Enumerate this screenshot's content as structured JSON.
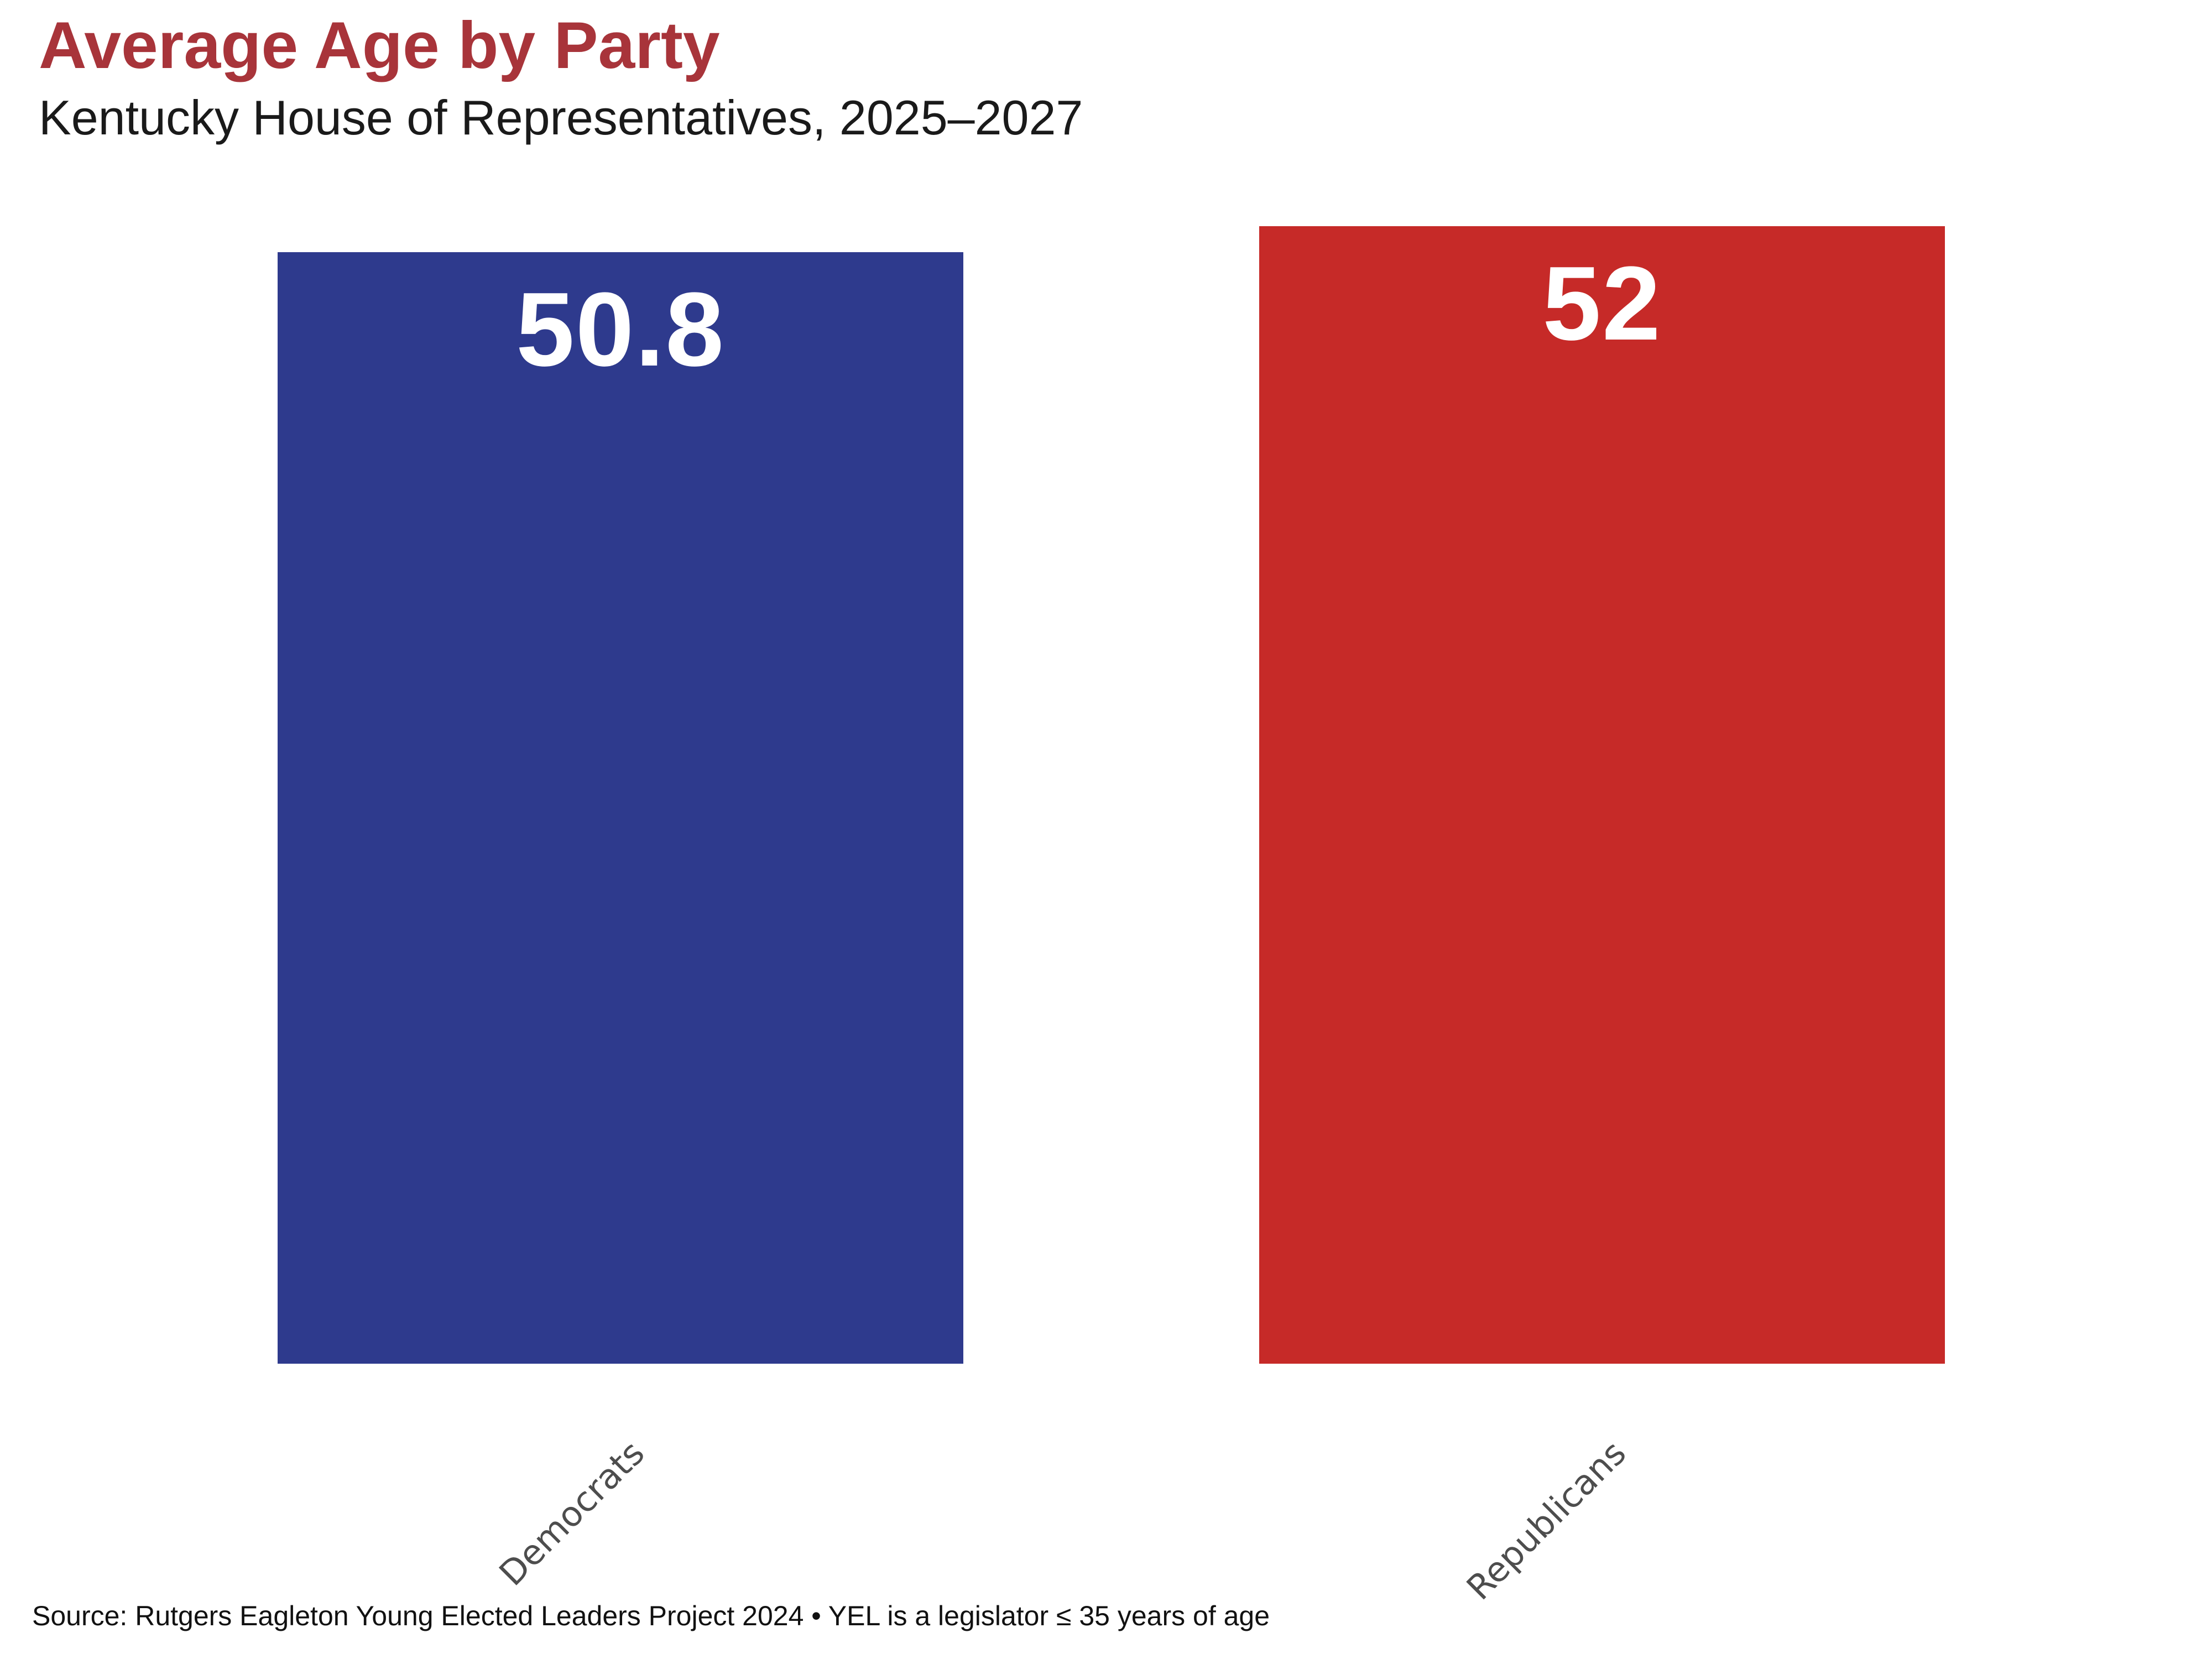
{
  "colors": {
    "title": "#A8343A",
    "subtitle": "#1A1A1A",
    "democrat": "#2E3A8D",
    "republican": "#C62A28",
    "value_label": "#FFFFFF",
    "tick_label": "#4D4D4D",
    "source_text": "#111111",
    "background": "#FFFFFF"
  },
  "chart_data": {
    "type": "bar",
    "title": "Average Age by Party",
    "subtitle": "Kentucky House of Representatives, 2025–2027",
    "source": "Source: Rutgers Eagleton Young Elected Leaders Project 2024 • YEL is a legislator ≤ 35 years of age",
    "categories": [
      "Democrats",
      "Republicans"
    ],
    "values": [
      50.8,
      52
    ],
    "bars": [
      {
        "category": "Democrats",
        "value": 50.8,
        "label": "50.8",
        "color": "#2E3A8D"
      },
      {
        "category": "Republicans",
        "value": 52,
        "label": "52",
        "color": "#C62A28"
      }
    ],
    "xlabel": "",
    "ylabel": "",
    "ylim": [
      0,
      54.6
    ],
    "grid": false,
    "legend": false,
    "y_axis_visible": false,
    "bar_label_position": "inside-top",
    "xtick_rotation_deg": 45
  }
}
